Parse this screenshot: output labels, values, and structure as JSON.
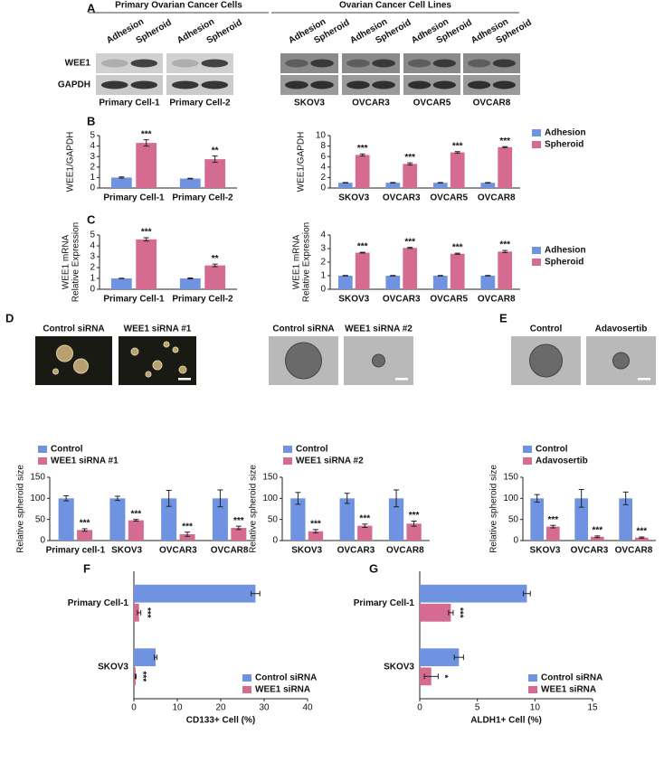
{
  "panel_labels": [
    "A",
    "B",
    "C",
    "D",
    "E",
    "F",
    "G"
  ],
  "blot": {
    "group_titles": [
      "Primary Ovarian Cancer Cells",
      "Ovarian Cancer Cell Lines"
    ],
    "lanes": [
      "Adhesion",
      "Spheroid"
    ],
    "rows": [
      "WEE1",
      "GAPDH"
    ],
    "samples": [
      "Primary Cell-1",
      "Primary Cell-2",
      "SKOV3",
      "OVCAR3",
      "OVCAR5",
      "OVCAR8"
    ]
  },
  "images": [
    [
      "Control siRNA",
      "WEE1 siRNA #1"
    ],
    [
      "Control siRNA",
      "WEE1 siRNA #2"
    ],
    [
      "Control",
      "Adavosertib"
    ]
  ],
  "chart_data": [
    {
      "type": "bar",
      "ylabel": [
        "WEE1/GAPDH"
      ],
      "categories": [
        "Primary Cell-1",
        "Primary Cell-2"
      ],
      "series": [
        {
          "name": "Adhesion",
          "color": "#6f93e0",
          "values": [
            1.0,
            0.9
          ],
          "errors": [
            0.06,
            0.03
          ]
        },
        {
          "name": "Spheroid",
          "color": "#d66b91",
          "values": [
            4.3,
            2.75
          ],
          "errors": [
            0.3,
            0.3
          ]
        }
      ],
      "annotations": [
        "***",
        "**"
      ],
      "ylim": [
        0,
        5
      ],
      "yticks": [
        0,
        1,
        2,
        3,
        4,
        5
      ]
    },
    {
      "type": "bar",
      "ylabel": [
        "WEE1/GAPDH"
      ],
      "categories": [
        "SKOV3",
        "OVCAR3",
        "OVCAR5",
        "OVCAR8"
      ],
      "series": [
        {
          "name": "Adhesion",
          "color": "#6f93e0",
          "values": [
            1,
            1,
            1,
            1
          ],
          "errors": [
            0.05,
            0.05,
            0.05,
            0.05
          ]
        },
        {
          "name": "Spheroid",
          "color": "#d66b91",
          "values": [
            6.3,
            4.6,
            6.8,
            7.8
          ],
          "errors": [
            0.2,
            0.2,
            0.15,
            0.1
          ]
        }
      ],
      "annotations": [
        "***",
        "***",
        "***",
        "***"
      ],
      "ylim": [
        0,
        10
      ],
      "yticks": [
        0,
        2,
        4,
        6,
        8,
        10
      ],
      "legend": "right"
    },
    {
      "type": "bar",
      "ylabel": [
        "WEE1 mRNA",
        "Relative Expression"
      ],
      "categories": [
        "Primary Cell-1",
        "Primary Cell-2"
      ],
      "series": [
        {
          "name": "Adhesion",
          "color": "#6f93e0",
          "values": [
            1,
            1
          ],
          "errors": [
            0.02,
            0.04
          ]
        },
        {
          "name": "Spheroid",
          "color": "#d66b91",
          "values": [
            4.6,
            2.2
          ],
          "errors": [
            0.15,
            0.12
          ]
        }
      ],
      "annotations": [
        "***",
        "**"
      ],
      "ylim": [
        0,
        5
      ],
      "yticks": [
        0,
        1,
        2,
        3,
        4,
        5
      ]
    },
    {
      "type": "bar",
      "ylabel": [
        "WEE1 mRNA",
        "Relative Expression"
      ],
      "categories": [
        "SKOV3",
        "OVCAR3",
        "OVCAR5",
        "OVCAR8"
      ],
      "series": [
        {
          "name": "Adhesion",
          "color": "#6f93e0",
          "values": [
            1,
            1,
            1,
            1
          ],
          "errors": [
            0.02,
            0.02,
            0.02,
            0.02
          ]
        },
        {
          "name": "Spheroid",
          "color": "#d66b91",
          "values": [
            2.7,
            3.05,
            2.62,
            2.78
          ],
          "errors": [
            0.03,
            0.04,
            0.04,
            0.08
          ]
        }
      ],
      "annotations": [
        "***",
        "***",
        "***",
        "***"
      ],
      "ylim": [
        0,
        4
      ],
      "yticks": [
        0,
        1,
        2,
        3,
        4
      ],
      "legend": "right"
    },
    {
      "type": "bar",
      "ylabel": [
        "Relative spheroid size"
      ],
      "categories": [
        "Primary cell-1",
        "SKOV3",
        "OVCAR3",
        "OVCAR8"
      ],
      "series": [
        {
          "name": "Control",
          "color": "#6f93e0",
          "values": [
            100,
            100,
            100,
            100
          ],
          "errors": [
            6,
            5,
            19,
            20
          ]
        },
        {
          "name": "WEE1 siRNA #1",
          "color": "#d66b91",
          "values": [
            25,
            48,
            15,
            30
          ],
          "errors": [
            3,
            2,
            5,
            4
          ]
        }
      ],
      "annotations": [
        "***",
        "***",
        "***",
        "***"
      ],
      "ylim": [
        0,
        150
      ],
      "yticks": [
        0,
        50,
        100,
        150
      ],
      "legend": "top"
    },
    {
      "type": "bar",
      "ylabel": [
        "Relative spheroid size"
      ],
      "categories": [
        "SKOV3",
        "OVCAR3",
        "OVCAR8"
      ],
      "series": [
        {
          "name": "Control",
          "color": "#6f93e0",
          "values": [
            100,
            100,
            100
          ],
          "errors": [
            14,
            12,
            20
          ]
        },
        {
          "name": "WEE1 siRNA #2",
          "color": "#d66b91",
          "values": [
            22,
            35,
            40
          ],
          "errors": [
            4,
            4,
            6
          ]
        }
      ],
      "annotations": [
        "***",
        "***",
        "***"
      ],
      "ylim": [
        0,
        150
      ],
      "yticks": [
        0,
        50,
        100,
        150
      ],
      "legend": "top"
    },
    {
      "type": "bar",
      "ylabel": [
        "Relative spheroid size"
      ],
      "categories": [
        "SKOV3",
        "OVCAR3",
        "OVCAR8"
      ],
      "series": [
        {
          "name": "Control",
          "color": "#6f93e0",
          "values": [
            100,
            100,
            100
          ],
          "errors": [
            9,
            21,
            15
          ]
        },
        {
          "name": "Adavosertib",
          "color": "#d66b91",
          "values": [
            33,
            9,
            7
          ],
          "errors": [
            3,
            2,
            1.5
          ]
        }
      ],
      "annotations": [
        "***",
        "***",
        "***"
      ],
      "ylim": [
        0,
        150
      ],
      "yticks": [
        0,
        50,
        100,
        150
      ],
      "legend": "top"
    },
    {
      "type": "barh",
      "xlabel": "CD133+ Cell (%)",
      "categories": [
        "Primary Cell-1",
        "SKOV3"
      ],
      "series": [
        {
          "name": "Control siRNA",
          "color": "#6f93e0",
          "values": [
            28,
            5
          ],
          "errors": [
            1,
            0.3
          ]
        },
        {
          "name": "WEE1 siRNA",
          "color": "#d66b91",
          "values": [
            1.2,
            0.4
          ],
          "errors": [
            0.4,
            0.1
          ]
        }
      ],
      "annotations": [
        "***",
        "***"
      ],
      "xlim": [
        0,
        40
      ],
      "xticks": [
        0,
        10,
        20,
        30,
        40
      ],
      "legend": "lower right"
    },
    {
      "type": "barh",
      "xlabel": "ALDH1+ Cell (%)",
      "categories": [
        "Primary Cell-1",
        "SKOV3"
      ],
      "series": [
        {
          "name": "Control siRNA",
          "color": "#6f93e0",
          "values": [
            9.3,
            3.4
          ],
          "errors": [
            0.3,
            0.4
          ]
        },
        {
          "name": "WEE1 siRNA",
          "color": "#d66b91",
          "values": [
            2.7,
            1.0
          ],
          "errors": [
            0.2,
            0.6
          ]
        }
      ],
      "annotations": [
        "***",
        "*"
      ],
      "xlim": [
        0,
        15
      ],
      "xticks": [
        0,
        5,
        10,
        15
      ],
      "legend": "lower right"
    }
  ]
}
